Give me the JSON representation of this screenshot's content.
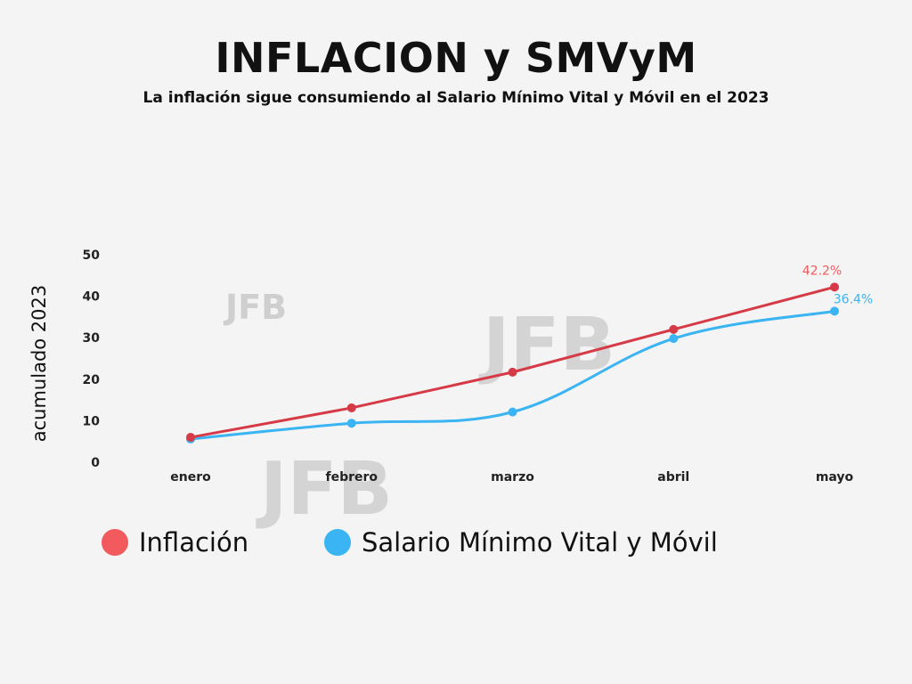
{
  "title": "INFLACION y SMVyM",
  "subtitle": "La inflación sigue consumiendo al Salario Mínimo Vital y Móvil en el 2023",
  "watermark": "JFB",
  "colors": {
    "inflacion": "#d63a47",
    "salario": "#3ab4f2",
    "legend_inflacion": "#f25a5e"
  },
  "chart_data": {
    "type": "line",
    "title": "INFLACION y SMVyM",
    "subtitle": "La inflación sigue consumiendo al Salario Mínimo Vital y Móvil en el 2023",
    "xlabel": "",
    "ylabel": "acumulado 2023",
    "categories": [
      "enero",
      "febrero",
      "marzo",
      "abril",
      "mayo"
    ],
    "ylim": [
      0,
      50
    ],
    "yticks": [
      0,
      10,
      20,
      30,
      40,
      50
    ],
    "grid": false,
    "legend_position": "bottom-left",
    "series": [
      {
        "name": "Inflación",
        "values": [
          6.0,
          13.1,
          21.7,
          32.0,
          42.2
        ],
        "end_label": "42.2%",
        "smooth": false
      },
      {
        "name": "Salario Mínimo Vital y Móvil",
        "values": [
          5.6,
          9.4,
          12.1,
          29.8,
          36.4
        ],
        "end_label": "36.4%",
        "smooth": true
      }
    ]
  }
}
